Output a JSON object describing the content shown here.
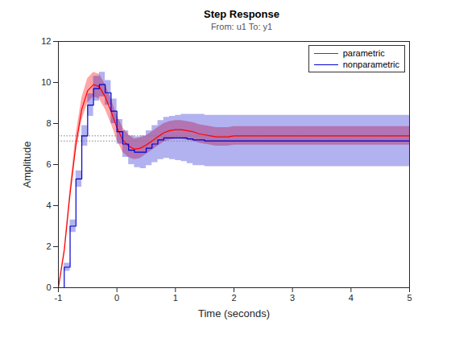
{
  "chart_data": {
    "type": "line",
    "title": "Step Response",
    "subtitle": "From: u1  To: y1",
    "x_label": "Time (seconds)",
    "y_label": "Amplitude",
    "xlim": [
      -1,
      5
    ],
    "xticks": [
      -1,
      0,
      1,
      2,
      3,
      4,
      5
    ],
    "ylim": [
      0,
      12
    ],
    "yticks": [
      0,
      2,
      4,
      6,
      8,
      10,
      12
    ],
    "grid": false,
    "legend": "top-right",
    "x": [
      -1,
      -0.9,
      -0.8,
      -0.7,
      -0.6,
      -0.5,
      -0.4,
      -0.3,
      -0.2,
      -0.1,
      0,
      0.1,
      0.2,
      0.3,
      0.4,
      0.5,
      0.6,
      0.7,
      0.8,
      0.9,
      1,
      1.1,
      1.2,
      1.3,
      1.4,
      1.5,
      1.6,
      1.7,
      1.8,
      1.9,
      2,
      2.1,
      2.2,
      2.3,
      2.4,
      2.5,
      2.6,
      2.7,
      2.8,
      2.9,
      3,
      3.1,
      3.2,
      3.3,
      3.4,
      3.5,
      3.6,
      3.7,
      3.8,
      3.9,
      4,
      4.1,
      4.2,
      4.3,
      4.4,
      4.5,
      4.6,
      4.7,
      4.8,
      4.9,
      5
    ],
    "series": [
      {
        "name": "parametric",
        "color": "#ff0000",
        "line_style": "solid",
        "final_value": 7.4,
        "values": [
          0,
          1.8,
          4.6,
          7.0,
          8.7,
          9.6,
          9.9,
          9.8,
          9.3,
          8.6,
          7.8,
          7.2,
          6.9,
          6.75,
          6.8,
          6.95,
          7.15,
          7.35,
          7.55,
          7.65,
          7.7,
          7.7,
          7.65,
          7.6,
          7.5,
          7.45,
          7.4,
          7.35,
          7.35,
          7.35,
          7.4,
          7.4,
          7.4,
          7.4,
          7.4,
          7.4,
          7.4,
          7.4,
          7.4,
          7.4,
          7.4,
          7.4,
          7.4,
          7.4,
          7.4,
          7.4,
          7.4,
          7.4,
          7.4,
          7.4,
          7.4,
          7.4,
          7.4,
          7.4,
          7.4,
          7.4,
          7.4,
          7.4,
          7.4,
          7.4,
          7.4
        ],
        "lower": [
          0,
          1.65,
          4.3,
          6.55,
          8.15,
          9.0,
          9.3,
          9.2,
          8.7,
          8.0,
          7.2,
          6.6,
          6.35,
          6.25,
          6.3,
          6.5,
          6.7,
          6.9,
          7.1,
          7.2,
          7.25,
          7.25,
          7.2,
          7.15,
          7.05,
          7.0,
          6.95,
          6.9,
          6.9,
          6.9,
          6.95,
          6.95,
          6.95,
          6.95,
          6.95,
          6.95,
          6.95,
          6.95,
          6.95,
          6.95,
          6.95,
          6.95,
          6.95,
          6.95,
          6.95,
          6.95,
          6.95,
          6.95,
          6.95,
          6.95,
          6.95,
          6.95,
          6.95,
          6.95,
          6.95,
          6.95,
          6.95,
          6.95,
          6.95,
          6.95,
          6.95
        ],
        "upper": [
          0,
          1.95,
          4.9,
          7.45,
          9.25,
          10.2,
          10.5,
          10.4,
          9.9,
          9.2,
          8.4,
          7.8,
          7.45,
          7.25,
          7.3,
          7.4,
          7.6,
          7.8,
          8.0,
          8.1,
          8.15,
          8.15,
          8.1,
          8.05,
          7.95,
          7.9,
          7.85,
          7.8,
          7.8,
          7.8,
          7.85,
          7.85,
          7.85,
          7.85,
          7.85,
          7.85,
          7.85,
          7.85,
          7.85,
          7.85,
          7.85,
          7.85,
          7.85,
          7.85,
          7.85,
          7.85,
          7.85,
          7.85,
          7.85,
          7.85,
          7.85,
          7.85,
          7.85,
          7.85,
          7.85,
          7.85,
          7.85,
          7.85,
          7.85,
          7.85,
          7.85
        ]
      },
      {
        "name": "nonparametric",
        "color": "#0000cc",
        "line_style": "step",
        "final_value": 7.15,
        "values": [
          0,
          1.0,
          3.0,
          5.3,
          7.4,
          8.9,
          9.7,
          9.9,
          9.5,
          8.6,
          7.6,
          7.0,
          6.7,
          6.6,
          6.6,
          6.8,
          7.0,
          7.2,
          7.3,
          7.3,
          7.3,
          7.3,
          7.25,
          7.2,
          7.2,
          7.15,
          7.15,
          7.15,
          7.15,
          7.15,
          7.15,
          7.15,
          7.15,
          7.15,
          7.15,
          7.15,
          7.15,
          7.15,
          7.15,
          7.15,
          7.15,
          7.15,
          7.15,
          7.15,
          7.15,
          7.15,
          7.15,
          7.15,
          7.15,
          7.15,
          7.15,
          7.15,
          7.15,
          7.15,
          7.15,
          7.15,
          7.15,
          7.15,
          7.15,
          7.15,
          7.15
        ],
        "lower": [
          0,
          0.8,
          2.7,
          4.9,
          6.9,
          8.35,
          9.1,
          9.3,
          8.9,
          8.0,
          7.0,
          6.35,
          6.0,
          5.85,
          5.8,
          5.95,
          6.1,
          6.25,
          6.3,
          6.25,
          6.2,
          6.15,
          6.05,
          5.95,
          5.95,
          5.9,
          5.9,
          5.9,
          5.9,
          5.9,
          5.9,
          5.9,
          5.9,
          5.9,
          5.9,
          5.9,
          5.9,
          5.9,
          5.9,
          5.9,
          5.9,
          5.9,
          5.9,
          5.9,
          5.9,
          5.9,
          5.9,
          5.9,
          5.9,
          5.9,
          5.9,
          5.9,
          5.9,
          5.9,
          5.9,
          5.9,
          5.9,
          5.9,
          5.9,
          5.9,
          5.9
        ],
        "upper": [
          0,
          1.2,
          3.3,
          5.7,
          7.9,
          9.45,
          10.3,
          10.5,
          10.1,
          9.2,
          8.2,
          7.65,
          7.4,
          7.35,
          7.4,
          7.65,
          7.9,
          8.15,
          8.3,
          8.35,
          8.4,
          8.45,
          8.45,
          8.45,
          8.45,
          8.4,
          8.4,
          8.4,
          8.4,
          8.4,
          8.4,
          8.4,
          8.4,
          8.4,
          8.4,
          8.4,
          8.4,
          8.4,
          8.4,
          8.4,
          8.4,
          8.4,
          8.4,
          8.4,
          8.4,
          8.4,
          8.4,
          8.4,
          8.4,
          8.4,
          8.4,
          8.4,
          8.4,
          8.4,
          8.4,
          8.4,
          8.4,
          8.4,
          8.4,
          8.4,
          8.4
        ]
      }
    ]
  }
}
